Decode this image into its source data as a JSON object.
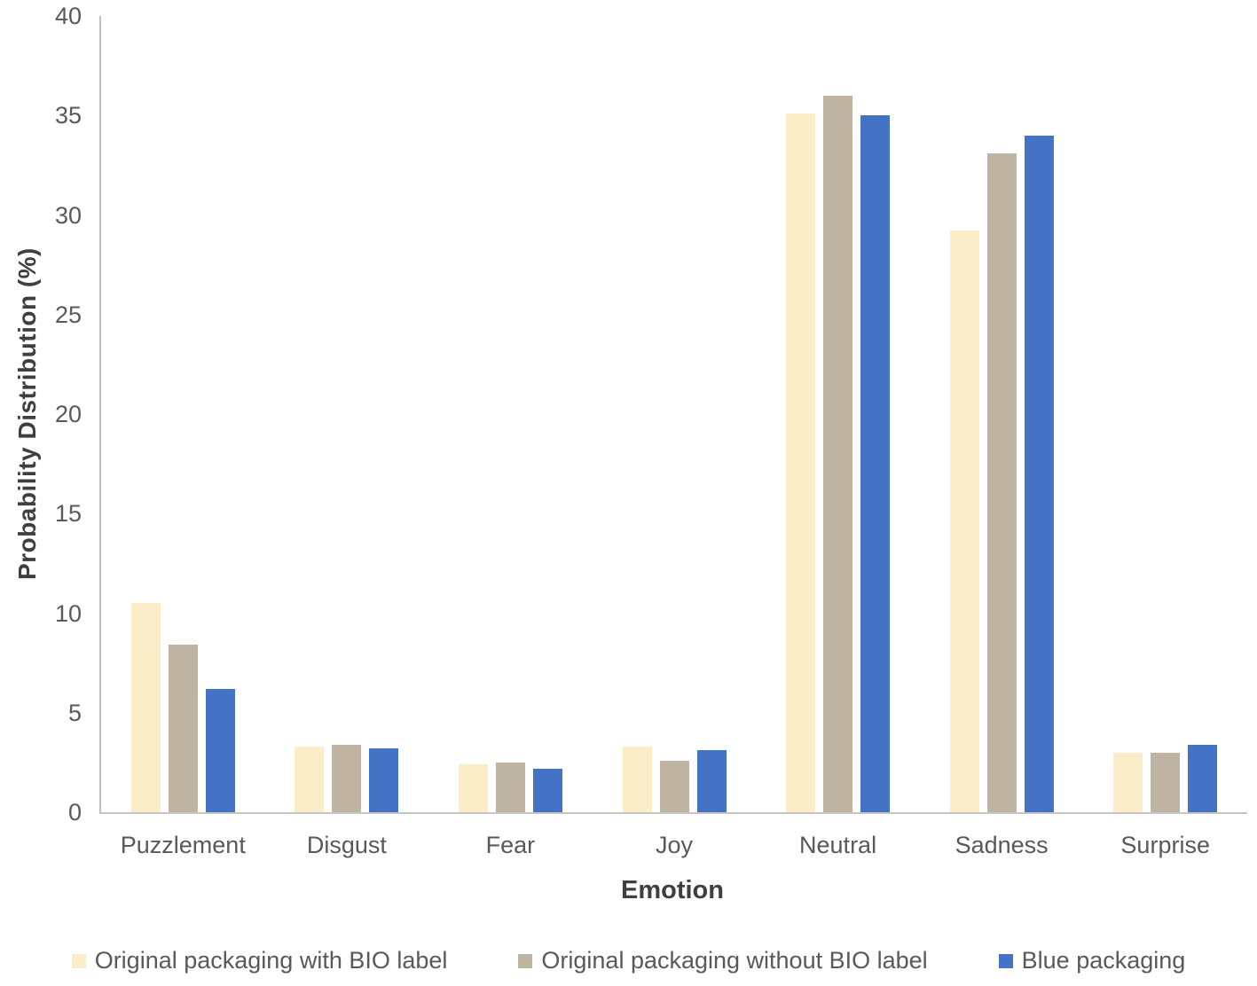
{
  "chart_data": {
    "type": "bar",
    "title": "",
    "xlabel": "Emotion",
    "ylabel": "Probability Distribution (%)",
    "ylim": [
      0,
      40
    ],
    "yticks": [
      0,
      5,
      10,
      15,
      20,
      25,
      30,
      35,
      40
    ],
    "grid": false,
    "legend_position": "bottom",
    "categories": [
      "Puzzlement",
      "Disgust",
      "Fear",
      "Joy",
      "Neutral",
      "Sadness",
      "Surprise"
    ],
    "series": [
      {
        "name": "Original packaging with BIO label",
        "color": "#FBEDC7",
        "values": [
          10.5,
          3.3,
          2.4,
          3.3,
          35.1,
          29.2,
          3.0
        ]
      },
      {
        "name": "Original packaging without BIO label",
        "color": "#BFB4A2",
        "values": [
          8.4,
          3.4,
          2.5,
          2.6,
          36.0,
          33.1,
          3.0
        ]
      },
      {
        "name": "Blue packaging",
        "color": "#4472C4",
        "values": [
          6.2,
          3.2,
          2.2,
          3.1,
          35.0,
          34.0,
          3.4
        ]
      }
    ],
    "colors": {
      "axis_line": "#BFBFBF",
      "tick_text": "#595959",
      "axis_title_text": "#3F3F3F"
    }
  }
}
